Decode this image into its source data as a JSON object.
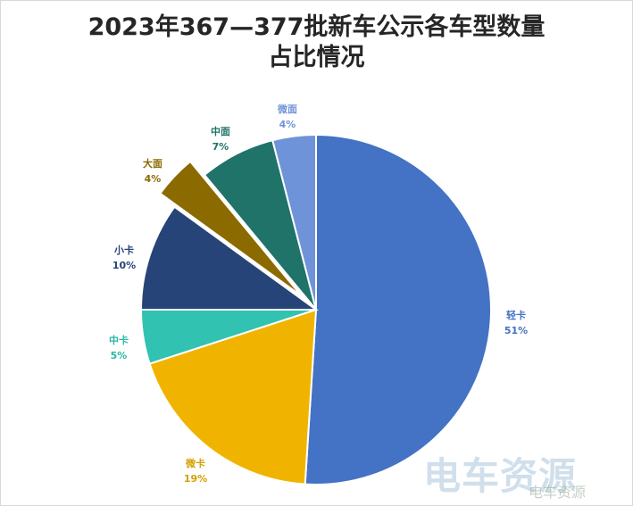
{
  "chart_data": {
    "type": "pie",
    "title_line1": "2023年367—377批新车公示各车型数量",
    "title_line2": "占比情况",
    "series": [
      {
        "name": "轻卡",
        "value": 51,
        "label": "51%",
        "color": "#4472c4",
        "text_color": "#4472c4"
      },
      {
        "name": "微卡",
        "value": 19,
        "label": "19%",
        "color": "#f0b400",
        "text_color": "#d4a000"
      },
      {
        "name": "中卡",
        "value": 5,
        "label": "5%",
        "color": "#31c2b1",
        "text_color": "#2cb5a6"
      },
      {
        "name": "小卡",
        "value": 10,
        "label": "10%",
        "color": "#264478",
        "text_color": "#264478"
      },
      {
        "name": "大面",
        "value": 4,
        "label": "4%",
        "color": "#8b6a00",
        "text_color": "#8b6a00",
        "exploded": true
      },
      {
        "name": "中面",
        "value": 7,
        "label": "7%",
        "color": "#1f7368",
        "text_color": "#1f7368"
      },
      {
        "name": "微面",
        "value": 4,
        "label": "4%",
        "color": "#6f93d8",
        "text_color": "#6f93d8"
      }
    ]
  },
  "watermark": {
    "main": "电车资源",
    "sub": "电车资源"
  }
}
